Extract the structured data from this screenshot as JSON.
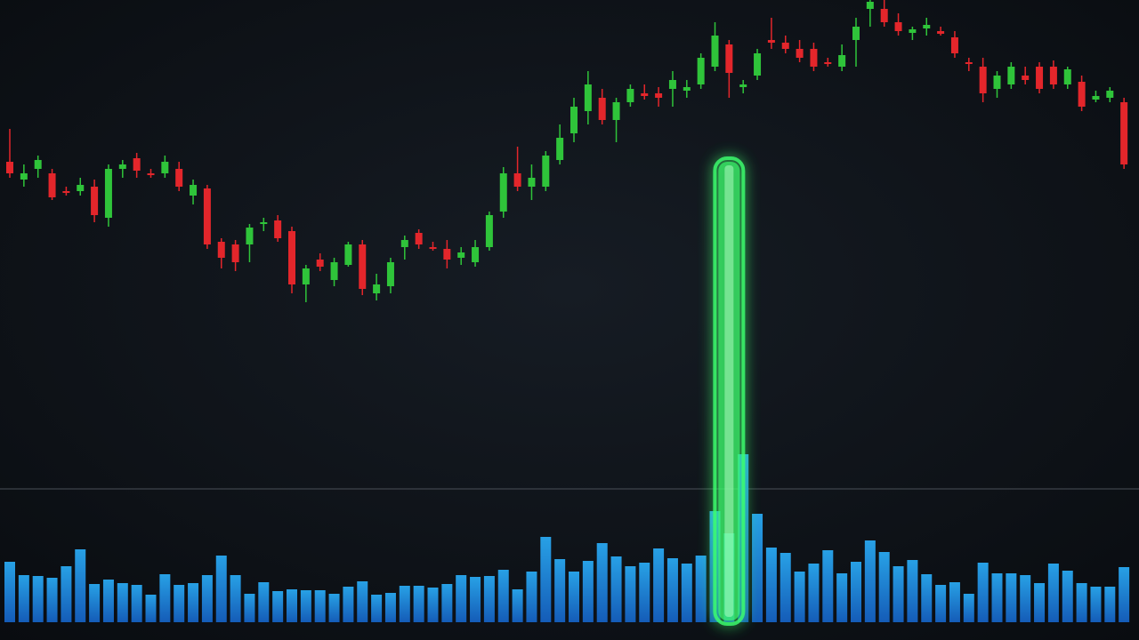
{
  "chart_data": {
    "type": "candlestick",
    "up_color": "#2fc43a",
    "down_color": "#e3262b",
    "volume_color": "#1f8ae0",
    "highlight_color": "#3dff6e",
    "highlight_index": 51,
    "ylim": [
      0,
      360
    ],
    "volume_ylim": [
      0,
      200
    ],
    "open": [
      178,
      158,
      170,
      165,
      145,
      145,
      150,
      115,
      170,
      182,
      165,
      165,
      170,
      140,
      148,
      88,
      85,
      85,
      108,
      112,
      100,
      40,
      68,
      45,
      62,
      85,
      30,
      38,
      82,
      98,
      82,
      80,
      70,
      65,
      82,
      122,
      165,
      150,
      150,
      180,
      210,
      235,
      250,
      225,
      245,
      255,
      255,
      260,
      258,
      265,
      285,
      310,
      262,
      275,
      315,
      312,
      305,
      305,
      290,
      285,
      315,
      350,
      350,
      335,
      323,
      328,
      325,
      318,
      290,
      285,
      260,
      265,
      275,
      285,
      285,
      265,
      268,
      248,
      250,
      245
    ],
    "high": [
      215,
      175,
      185,
      170,
      150,
      160,
      158,
      175,
      180,
      188,
      170,
      185,
      178,
      158,
      152,
      92,
      90,
      108,
      115,
      118,
      105,
      62,
      75,
      70,
      88,
      90,
      52,
      70,
      95,
      102,
      88,
      90,
      82,
      90,
      122,
      172,
      195,
      175,
      190,
      220,
      250,
      280,
      260,
      250,
      265,
      265,
      262,
      280,
      270,
      300,
      335,
      315,
      270,
      305,
      340,
      320,
      315,
      312,
      295,
      310,
      340,
      360,
      360,
      345,
      330,
      340,
      330,
      325,
      295,
      295,
      280,
      290,
      285,
      290,
      292,
      285,
      275,
      258,
      262,
      250
    ],
    "low": [
      160,
      150,
      160,
      135,
      140,
      140,
      110,
      105,
      160,
      160,
      160,
      160,
      145,
      130,
      80,
      58,
      55,
      65,
      100,
      88,
      30,
      20,
      55,
      38,
      60,
      28,
      22,
      30,
      68,
      80,
      78,
      58,
      62,
      60,
      78,
      115,
      145,
      135,
      145,
      175,
      200,
      220,
      220,
      200,
      240,
      248,
      240,
      240,
      250,
      260,
      280,
      250,
      255,
      270,
      305,
      300,
      290,
      280,
      285,
      280,
      285,
      330,
      330,
      320,
      315,
      320,
      320,
      295,
      280,
      245,
      250,
      260,
      265,
      255,
      260,
      260,
      235,
      245,
      245,
      170
    ],
    "close": [
      165,
      165,
      180,
      138,
      144,
      152,
      118,
      170,
      175,
      168,
      163,
      178,
      150,
      152,
      85,
      70,
      65,
      104,
      110,
      92,
      40,
      58,
      60,
      65,
      85,
      35,
      40,
      65,
      90,
      85,
      80,
      68,
      76,
      82,
      118,
      165,
      150,
      160,
      185,
      205,
      240,
      265,
      225,
      245,
      260,
      252,
      250,
      270,
      262,
      295,
      320,
      278,
      265,
      300,
      312,
      305,
      295,
      285,
      288,
      298,
      330,
      358,
      335,
      325,
      327,
      332,
      322,
      300,
      288,
      255,
      275,
      285,
      270,
      260,
      265,
      282,
      240,
      252,
      258,
      175
    ],
    "volume": [
      68,
      53,
      52,
      50,
      63,
      82,
      43,
      48,
      44,
      42,
      31,
      54,
      42,
      44,
      53,
      75,
      53,
      32,
      45,
      35,
      37,
      36,
      36,
      32,
      40,
      46,
      31,
      33,
      41,
      41,
      39,
      43,
      53,
      51,
      52,
      59,
      37,
      57,
      96,
      71,
      57,
      69,
      89,
      74,
      63,
      67,
      83,
      72,
      66,
      75,
      125,
      100,
      189,
      122,
      84,
      78,
      57,
      66,
      81,
      55,
      68,
      92,
      79,
      63,
      70,
      54,
      42,
      45,
      32,
      67,
      55,
      55,
      53,
      44,
      66,
      58,
      44,
      40,
      40,
      62
    ]
  }
}
